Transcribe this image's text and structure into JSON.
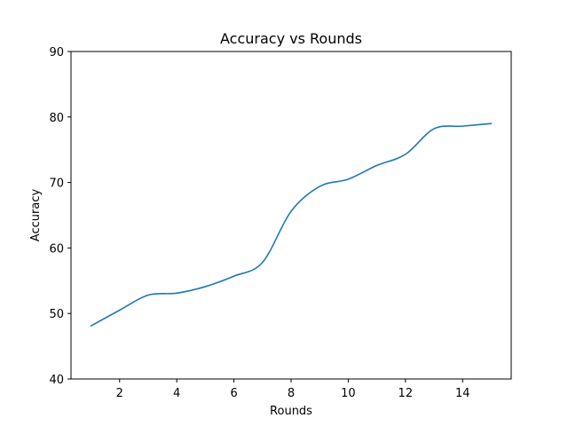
{
  "chart_data": {
    "type": "line",
    "title": "Accuracy vs Rounds",
    "xlabel": "Rounds",
    "ylabel": "Accuracy",
    "xlim": [
      0.3,
      15.7
    ],
    "ylim": [
      40,
      90
    ],
    "xticks": [
      2,
      4,
      6,
      8,
      10,
      12,
      14
    ],
    "yticks": [
      40,
      50,
      60,
      70,
      80,
      90
    ],
    "grid": false,
    "legend": "none",
    "series": [
      {
        "color": "#1f77b4",
        "x": [
          1,
          2,
          3,
          4,
          5,
          6,
          7,
          8,
          9,
          10,
          11,
          12,
          13,
          14,
          15
        ],
        "values": [
          48.1,
          50.5,
          52.8,
          53.1,
          54.1,
          55.7,
          57.8,
          65.6,
          69.4,
          70.5,
          72.6,
          74.3,
          78.2,
          78.6,
          79.0
        ]
      }
    ]
  }
}
